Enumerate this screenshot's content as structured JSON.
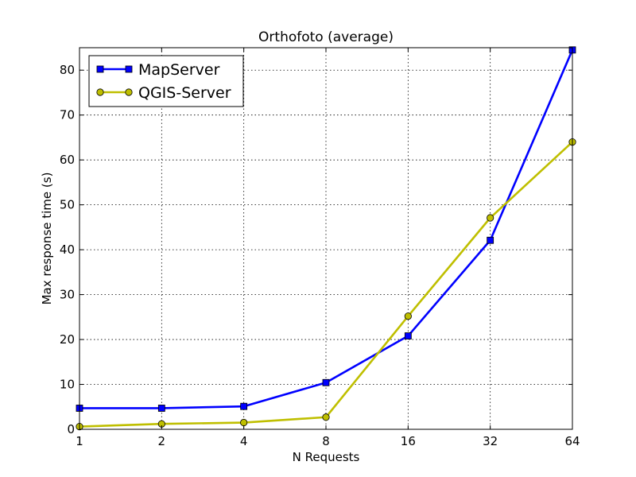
{
  "chart_data": {
    "type": "line",
    "title": "Orthofoto (average)",
    "xlabel": "N Requests",
    "ylabel": "Max response time (s)",
    "x_scale": "log2",
    "categories": [
      "1",
      "2",
      "4",
      "8",
      "16",
      "32",
      "64"
    ],
    "x": [
      1,
      2,
      4,
      8,
      16,
      32,
      64
    ],
    "ylim": [
      0,
      85
    ],
    "yticks": [
      "0",
      "10",
      "20",
      "30",
      "40",
      "50",
      "60",
      "70",
      "80"
    ],
    "grid": true,
    "legend_position": "top-left",
    "series": [
      {
        "name": "MapServer",
        "color": "#0000ff",
        "marker": "square",
        "values": [
          4.7,
          4.7,
          5.1,
          10.4,
          20.8,
          42.1,
          84.5
        ]
      },
      {
        "name": "QGIS-Server",
        "color": "#bfbf00",
        "marker": "circle",
        "values": [
          0.6,
          1.2,
          1.5,
          2.7,
          25.2,
          47.1,
          64.0
        ]
      }
    ]
  }
}
